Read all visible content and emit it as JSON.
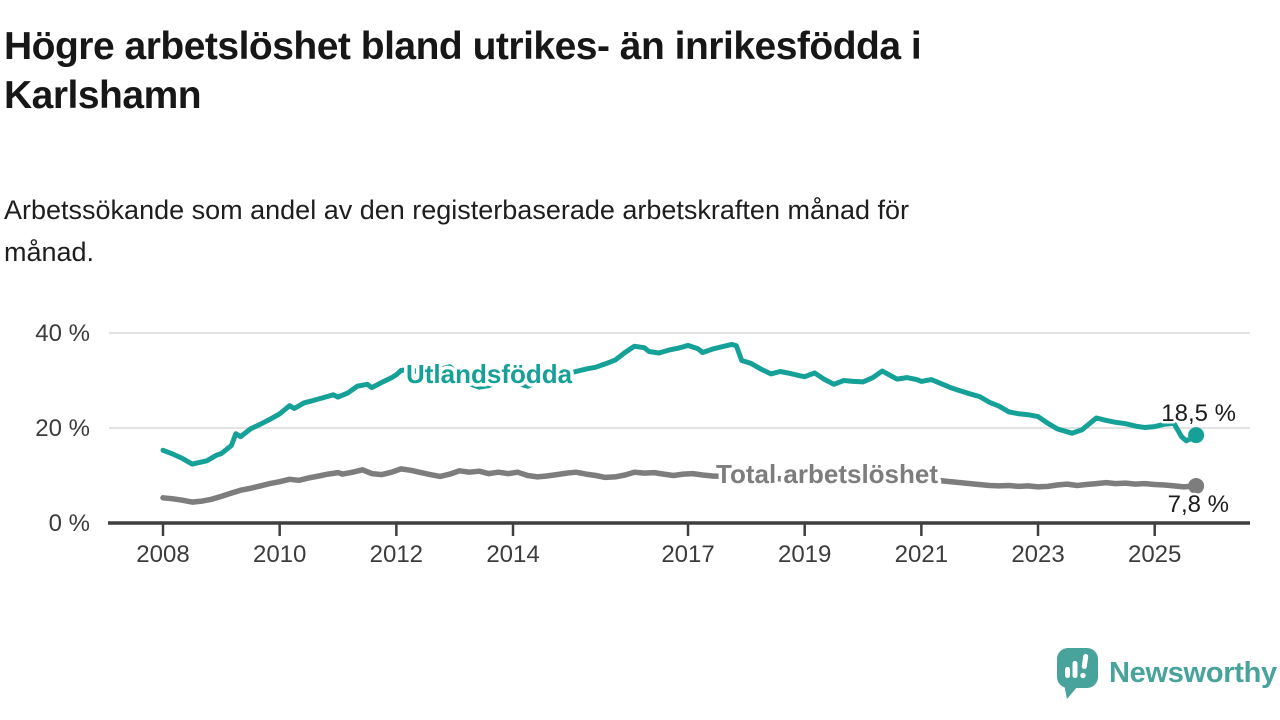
{
  "header": {
    "title_line1": "Högre arbetslöshet bland utrikes- än inrikesfödda i",
    "title_line2": "Karlshamn",
    "subtitle_line1": "Arbetssökande som andel av den registerbaserade arbetskraften månad för",
    "subtitle_line2": "månad."
  },
  "branding": {
    "logo_text": "Newsworthy",
    "logo_color": "#47a39b",
    "logo_icon": "speech-bubble-bar-chart-icon"
  },
  "chart_data": {
    "type": "line",
    "title": "Högre arbetslöshet bland utrikes- än inrikesfödda i Karlshamn",
    "subtitle": "Arbetssökande som andel av den registerbaserade arbetskraften månad för månad.",
    "unit": "%",
    "grid": "horizontal-on",
    "legend_position": "inline-labels-on-lines",
    "xlim": [
      2007.1,
      2026.6
    ],
    "ylim": [
      0,
      44
    ],
    "x_ticks": [
      {
        "value": 2008,
        "label": "2008"
      },
      {
        "value": 2010,
        "label": "2010"
      },
      {
        "value": 2012,
        "label": "2012"
      },
      {
        "value": 2014,
        "label": "2014"
      },
      {
        "value": 2017,
        "label": "2017"
      },
      {
        "value": 2019,
        "label": "2019"
      },
      {
        "value": 2021,
        "label": "2021"
      },
      {
        "value": 2023,
        "label": "2023"
      },
      {
        "value": 2025,
        "label": "2025"
      }
    ],
    "y_ticks": [
      {
        "value": 0,
        "label": "0 %"
      },
      {
        "value": 20,
        "label": "20 %"
      },
      {
        "value": 40,
        "label": "40 %"
      }
    ],
    "series": [
      {
        "name": "Utlandsfödda",
        "color": "#16a198",
        "end_value": 18.5,
        "end_label": "18,5 %",
        "points": [
          [
            2008.0,
            15.3
          ],
          [
            2008.17,
            14.5
          ],
          [
            2008.33,
            13.6
          ],
          [
            2008.5,
            12.4
          ],
          [
            2008.58,
            12.6
          ],
          [
            2008.75,
            13.1
          ],
          [
            2008.92,
            14.3
          ],
          [
            2009.0,
            14.6
          ],
          [
            2009.17,
            16.3
          ],
          [
            2009.25,
            18.8
          ],
          [
            2009.33,
            18.2
          ],
          [
            2009.5,
            19.8
          ],
          [
            2009.67,
            20.8
          ],
          [
            2009.83,
            21.8
          ],
          [
            2010.0,
            23.0
          ],
          [
            2010.17,
            24.7
          ],
          [
            2010.25,
            24.1
          ],
          [
            2010.42,
            25.3
          ],
          [
            2010.58,
            25.8
          ],
          [
            2010.75,
            26.4
          ],
          [
            2010.92,
            27.0
          ],
          [
            2011.0,
            26.5
          ],
          [
            2011.17,
            27.4
          ],
          [
            2011.33,
            28.8
          ],
          [
            2011.5,
            29.2
          ],
          [
            2011.58,
            28.5
          ],
          [
            2011.75,
            29.6
          ],
          [
            2011.92,
            30.6
          ],
          [
            2012.0,
            31.2
          ],
          [
            2012.08,
            32.1
          ],
          [
            2012.25,
            32.4
          ],
          [
            2012.42,
            31.5
          ],
          [
            2012.58,
            31.9
          ],
          [
            2012.75,
            32.4
          ],
          [
            2012.92,
            32.9
          ],
          [
            2013.08,
            31.2
          ],
          [
            2013.25,
            29.3
          ],
          [
            2013.42,
            28.6
          ],
          [
            2013.58,
            28.9
          ],
          [
            2013.75,
            29.8
          ],
          [
            2013.92,
            30.4
          ],
          [
            2014.08,
            29.4
          ],
          [
            2014.25,
            28.8
          ],
          [
            2014.42,
            29.7
          ],
          [
            2014.58,
            30.3
          ],
          [
            2014.75,
            30.9
          ],
          [
            2014.92,
            31.4
          ],
          [
            2015.08,
            31.9
          ],
          [
            2015.25,
            32.4
          ],
          [
            2015.42,
            32.8
          ],
          [
            2015.58,
            33.5
          ],
          [
            2015.75,
            34.3
          ],
          [
            2015.92,
            35.9
          ],
          [
            2016.08,
            37.2
          ],
          [
            2016.25,
            36.9
          ],
          [
            2016.33,
            36.1
          ],
          [
            2016.5,
            35.8
          ],
          [
            2016.67,
            36.4
          ],
          [
            2016.83,
            36.8
          ],
          [
            2016.92,
            37.1
          ],
          [
            2017.0,
            37.4
          ],
          [
            2017.17,
            36.7
          ],
          [
            2017.25,
            35.9
          ],
          [
            2017.42,
            36.6
          ],
          [
            2017.58,
            37.1
          ],
          [
            2017.75,
            37.6
          ],
          [
            2017.83,
            37.3
          ],
          [
            2017.92,
            34.2
          ],
          [
            2018.08,
            33.6
          ],
          [
            2018.25,
            32.4
          ],
          [
            2018.42,
            31.4
          ],
          [
            2018.58,
            31.9
          ],
          [
            2018.75,
            31.5
          ],
          [
            2018.92,
            31.0
          ],
          [
            2019.0,
            30.8
          ],
          [
            2019.17,
            31.6
          ],
          [
            2019.33,
            30.3
          ],
          [
            2019.5,
            29.2
          ],
          [
            2019.67,
            30.0
          ],
          [
            2019.83,
            29.8
          ],
          [
            2020.0,
            29.7
          ],
          [
            2020.17,
            30.6
          ],
          [
            2020.33,
            32.0
          ],
          [
            2020.42,
            31.4
          ],
          [
            2020.58,
            30.3
          ],
          [
            2020.75,
            30.6
          ],
          [
            2020.92,
            30.2
          ],
          [
            2021.0,
            29.8
          ],
          [
            2021.17,
            30.2
          ],
          [
            2021.33,
            29.4
          ],
          [
            2021.5,
            28.5
          ],
          [
            2021.67,
            27.8
          ],
          [
            2021.83,
            27.2
          ],
          [
            2022.0,
            26.6
          ],
          [
            2022.17,
            25.4
          ],
          [
            2022.33,
            24.6
          ],
          [
            2022.5,
            23.4
          ],
          [
            2022.67,
            23.0
          ],
          [
            2022.83,
            22.8
          ],
          [
            2023.0,
            22.4
          ],
          [
            2023.17,
            21.0
          ],
          [
            2023.33,
            19.8
          ],
          [
            2023.5,
            19.2
          ],
          [
            2023.58,
            18.9
          ],
          [
            2023.75,
            19.6
          ],
          [
            2023.92,
            21.3
          ],
          [
            2024.0,
            22.1
          ],
          [
            2024.17,
            21.6
          ],
          [
            2024.33,
            21.2
          ],
          [
            2024.5,
            20.9
          ],
          [
            2024.67,
            20.4
          ],
          [
            2024.83,
            20.1
          ],
          [
            2025.0,
            20.3
          ],
          [
            2025.17,
            20.8
          ],
          [
            2025.33,
            21.0
          ],
          [
            2025.46,
            18.2
          ],
          [
            2025.54,
            17.3
          ],
          [
            2025.63,
            17.8
          ],
          [
            2025.71,
            18.5
          ]
        ]
      },
      {
        "name": "Total arbetslöshet",
        "color": "#7d7d7d",
        "end_value": 7.8,
        "end_label": "7,8 %",
        "points": [
          [
            2008.0,
            5.3
          ],
          [
            2008.17,
            5.1
          ],
          [
            2008.33,
            4.8
          ],
          [
            2008.5,
            4.4
          ],
          [
            2008.67,
            4.6
          ],
          [
            2008.83,
            5.0
          ],
          [
            2009.0,
            5.6
          ],
          [
            2009.17,
            6.3
          ],
          [
            2009.33,
            6.9
          ],
          [
            2009.5,
            7.3
          ],
          [
            2009.67,
            7.8
          ],
          [
            2009.83,
            8.3
          ],
          [
            2010.0,
            8.7
          ],
          [
            2010.17,
            9.2
          ],
          [
            2010.33,
            9.0
          ],
          [
            2010.5,
            9.5
          ],
          [
            2010.67,
            9.9
          ],
          [
            2010.83,
            10.3
          ],
          [
            2011.0,
            10.6
          ],
          [
            2011.08,
            10.3
          ],
          [
            2011.25,
            10.7
          ],
          [
            2011.42,
            11.2
          ],
          [
            2011.58,
            10.4
          ],
          [
            2011.75,
            10.2
          ],
          [
            2011.92,
            10.7
          ],
          [
            2012.08,
            11.4
          ],
          [
            2012.25,
            11.1
          ],
          [
            2012.42,
            10.6
          ],
          [
            2012.58,
            10.2
          ],
          [
            2012.75,
            9.8
          ],
          [
            2012.92,
            10.3
          ],
          [
            2013.08,
            11.0
          ],
          [
            2013.25,
            10.7
          ],
          [
            2013.42,
            10.9
          ],
          [
            2013.58,
            10.4
          ],
          [
            2013.75,
            10.7
          ],
          [
            2013.92,
            10.4
          ],
          [
            2014.08,
            10.7
          ],
          [
            2014.25,
            10.0
          ],
          [
            2014.42,
            9.7
          ],
          [
            2014.58,
            9.9
          ],
          [
            2014.75,
            10.2
          ],
          [
            2014.92,
            10.5
          ],
          [
            2015.08,
            10.7
          ],
          [
            2015.25,
            10.3
          ],
          [
            2015.42,
            10.0
          ],
          [
            2015.58,
            9.6
          ],
          [
            2015.75,
            9.7
          ],
          [
            2015.92,
            10.1
          ],
          [
            2016.08,
            10.7
          ],
          [
            2016.25,
            10.5
          ],
          [
            2016.42,
            10.6
          ],
          [
            2016.58,
            10.3
          ],
          [
            2016.75,
            10.0
          ],
          [
            2016.92,
            10.3
          ],
          [
            2017.08,
            10.4
          ],
          [
            2017.25,
            10.1
          ],
          [
            2017.42,
            9.9
          ],
          [
            2017.58,
            9.8
          ],
          [
            2017.75,
            9.6
          ],
          [
            2017.92,
            9.7
          ],
          [
            2018.25,
            9.5
          ],
          [
            2018.58,
            9.3
          ],
          [
            2018.92,
            9.2
          ],
          [
            2019.25,
            9.0
          ],
          [
            2019.58,
            8.9
          ],
          [
            2019.92,
            9.1
          ],
          [
            2020.25,
            9.9
          ],
          [
            2020.5,
            10.2
          ],
          [
            2020.75,
            9.8
          ],
          [
            2021.0,
            9.4
          ],
          [
            2021.25,
            9.0
          ],
          [
            2021.58,
            8.6
          ],
          [
            2021.92,
            8.2
          ],
          [
            2022.17,
            7.9
          ],
          [
            2022.33,
            7.8
          ],
          [
            2022.5,
            7.9
          ],
          [
            2022.67,
            7.7
          ],
          [
            2022.83,
            7.8
          ],
          [
            2023.0,
            7.6
          ],
          [
            2023.17,
            7.7
          ],
          [
            2023.33,
            8.0
          ],
          [
            2023.5,
            8.2
          ],
          [
            2023.67,
            7.9
          ],
          [
            2023.83,
            8.1
          ],
          [
            2024.0,
            8.3
          ],
          [
            2024.17,
            8.5
          ],
          [
            2024.33,
            8.3
          ],
          [
            2024.5,
            8.4
          ],
          [
            2024.67,
            8.2
          ],
          [
            2024.83,
            8.3
          ],
          [
            2025.0,
            8.1
          ],
          [
            2025.17,
            8.0
          ],
          [
            2025.33,
            7.8
          ],
          [
            2025.5,
            7.6
          ],
          [
            2025.71,
            7.8
          ]
        ]
      }
    ]
  }
}
